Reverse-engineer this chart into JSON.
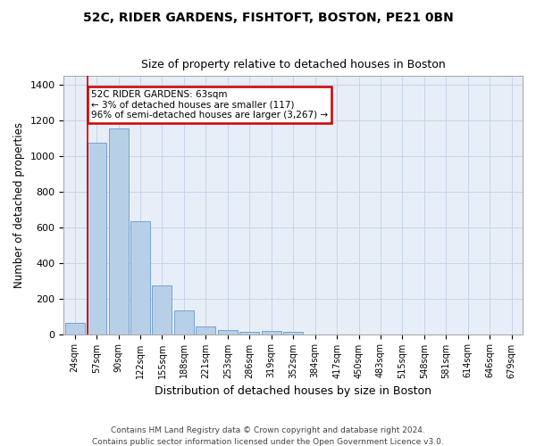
{
  "title": "52C, RIDER GARDENS, FISHTOFT, BOSTON, PE21 0BN",
  "subtitle": "Size of property relative to detached houses in Boston",
  "xlabel": "Distribution of detached houses by size in Boston",
  "ylabel": "Number of detached properties",
  "footer_line1": "Contains HM Land Registry data © Crown copyright and database right 2024.",
  "footer_line2": "Contains public sector information licensed under the Open Government Licence v3.0.",
  "categories": [
    "24sqm",
    "57sqm",
    "90sqm",
    "122sqm",
    "155sqm",
    "188sqm",
    "221sqm",
    "253sqm",
    "286sqm",
    "319sqm",
    "352sqm",
    "384sqm",
    "417sqm",
    "450sqm",
    "483sqm",
    "515sqm",
    "548sqm",
    "581sqm",
    "614sqm",
    "646sqm",
    "679sqm"
  ],
  "values": [
    62,
    1075,
    1155,
    635,
    275,
    135,
    45,
    22,
    15,
    18,
    14,
    0,
    0,
    0,
    0,
    0,
    0,
    0,
    0,
    0,
    0
  ],
  "bar_color": "#b8cfe8",
  "bar_edge_color": "#6699cc",
  "grid_color": "#c8d4e8",
  "background_color": "#e8eef8",
  "annotation_text": "52C RIDER GARDENS: 63sqm\n← 3% of detached houses are smaller (117)\n96% of semi-detached houses are larger (3,267) →",
  "annotation_box_color": "#ffffff",
  "annotation_border_color": "#cc0000",
  "vline_color": "#cc0000",
  "vline_x": 0.57,
  "ylim": [
    0,
    1450
  ],
  "yticks": [
    0,
    200,
    400,
    600,
    800,
    1000,
    1200,
    1400
  ]
}
